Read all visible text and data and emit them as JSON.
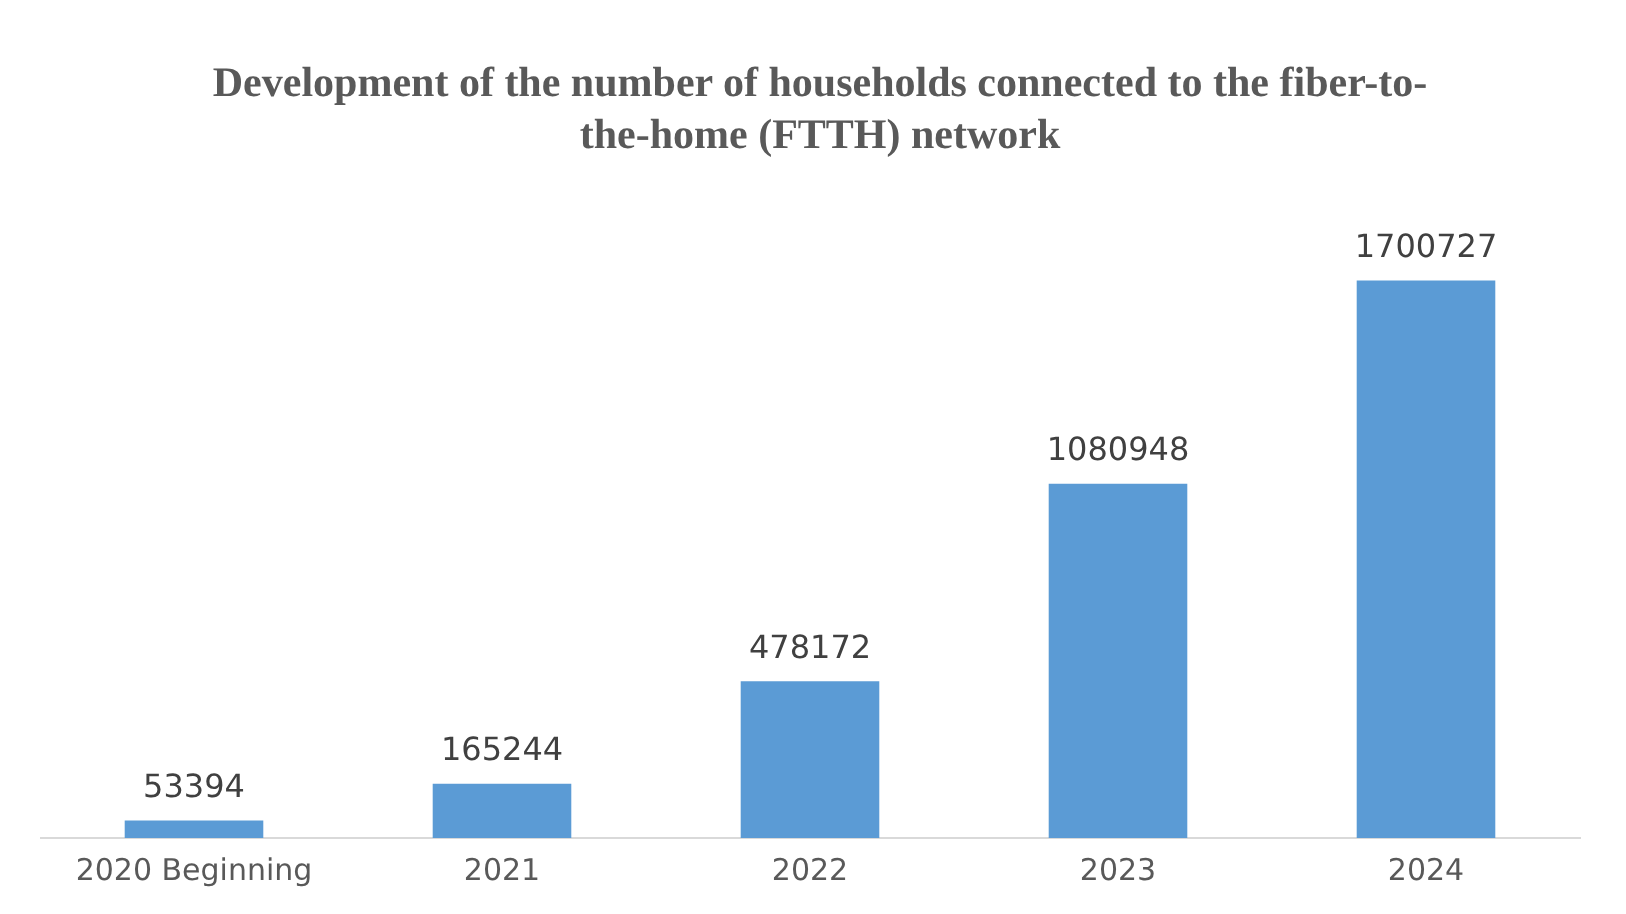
{
  "chart_data": {
    "type": "bar",
    "title": "Development of the number of households connected to the fiber-to-the-home (FTTH) network",
    "categories": [
      "2020 Beginning",
      "2021",
      "2022",
      "2023",
      "2024"
    ],
    "values": [
      53394,
      165244,
      478172,
      1080948,
      1700727
    ],
    "color": "#5b9bd5",
    "data_labels": true,
    "grid": false,
    "legend": false
  }
}
